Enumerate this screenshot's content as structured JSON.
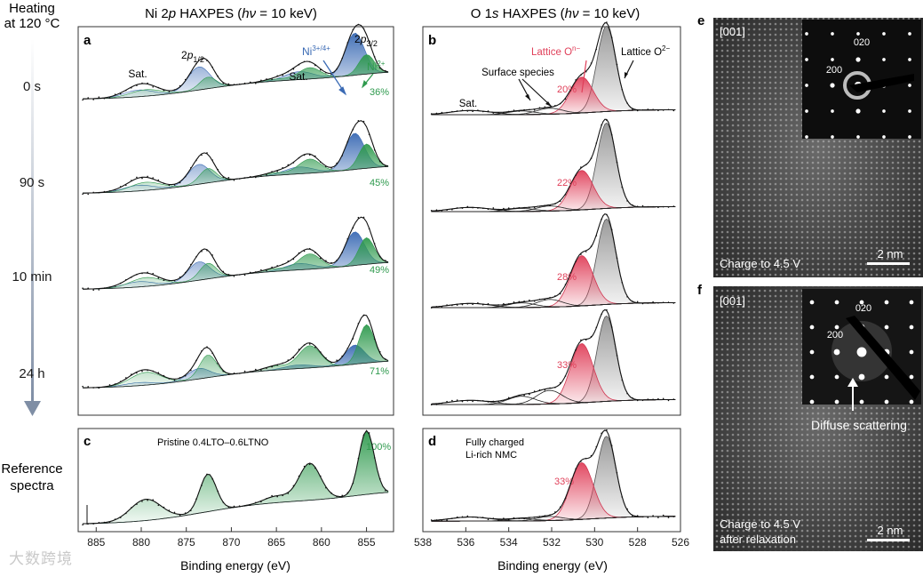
{
  "side": {
    "heating": "Heating",
    "at_temp": "at 120 °C",
    "times": [
      "0 s",
      "90 s",
      "10 min",
      "24 h"
    ],
    "reference_l1": "Reference",
    "reference_l2": "spectra"
  },
  "ni": {
    "title_pre": "Ni 2",
    "title_orb": "p",
    "title_mid": " HAXPES (",
    "title_h": "h",
    "title_nu": "ν",
    "title_post": " = 10 keV)",
    "panel_a": "a",
    "panel_c": "c",
    "lbl_2p12_pre": "2",
    "lbl_2p12_p": "p",
    "lbl_2p12_sub": "1/2",
    "lbl_2p32_pre": "2",
    "lbl_2p32_p": "p",
    "lbl_2p32_sub": "3/2",
    "sat_left": "Sat.",
    "sat_right": "Sat.",
    "ni34_base": "Ni",
    "ni34_sup": "3+/4+",
    "ni2_base": "Ni",
    "ni2_sup": "2+",
    "percents": [
      "36%",
      "45%",
      "49%",
      "71%"
    ],
    "ref_percent": "100%",
    "ref_label": "Pristine 0.4LTO–0.6LTNO",
    "ticks": [
      "885",
      "880",
      "875",
      "870",
      "865",
      "860",
      "855"
    ],
    "xlabel": "Binding energy (eV)"
  },
  "o": {
    "title_pre": "O 1",
    "title_orb": "s",
    "title_mid": " HAXPES (",
    "title_h": "h",
    "title_nu": "ν",
    "title_post": " = 10 keV)",
    "panel_b": "b",
    "panel_d": "d",
    "lattice_base": "Lattice O",
    "lattice_sup": "2−",
    "lattice_on_base": "Lattice O",
    "lattice_on_sup": "n−",
    "surface": "Surface species",
    "sat": "Sat.",
    "percents": [
      "20%",
      "22%",
      "28%",
      "33%"
    ],
    "ref_percent": "33%",
    "ref_label_1": "Fully charged",
    "ref_label_2": "Li-rich NMC",
    "ticks": [
      "538",
      "536",
      "534",
      "532",
      "530",
      "528",
      "526"
    ],
    "xlabel": "Binding energy (eV)"
  },
  "tem": {
    "panel_e": "e",
    "panel_f": "f",
    "zone_e": "[001]",
    "zone_f": "[001]",
    "e_spot_020": "020",
    "e_spot_200": "200",
    "f_spot_020": "020",
    "f_spot_200": "200",
    "diffuse": "Diffuse scattering",
    "caption_e": "Charge to 4.5 V",
    "caption_f_1": "Charge to 4.5 V",
    "caption_f_2": "after relaxation",
    "scale_e": "2 nm",
    "scale_f": "2 nm"
  },
  "watermark": "大数跨境",
  "colors": {
    "ni2_green": "#2f9a4e",
    "ni34_blue": "#3a6ab4",
    "lattice_on_red": "#e0405a",
    "arrow_gray": "#8d9aad"
  },
  "chart_data": [
    {
      "type": "line",
      "title": "Ni 2p HAXPES (hν = 10 keV)",
      "panels": [
        "a",
        "c"
      ],
      "xlabel": "Binding energy (eV)",
      "ylabel": "",
      "xlim": [
        887,
        852
      ],
      "xticks": [
        885,
        880,
        875,
        870,
        865,
        860,
        855
      ],
      "series": [
        {
          "name": "0 s",
          "ni2_fraction_pct": 36
        },
        {
          "name": "90 s",
          "ni2_fraction_pct": 45
        },
        {
          "name": "10 min",
          "ni2_fraction_pct": 49
        },
        {
          "name": "24 h",
          "ni2_fraction_pct": 71
        },
        {
          "name": "Pristine 0.4LTO–0.6LTNO (reference)",
          "ni2_fraction_pct": 100
        }
      ],
      "components": [
        "Ni2+",
        "Ni3+/4+",
        "Sat."
      ],
      "peaks_eV": {
        "2p3/2": 855.5,
        "2p1/2": 873,
        "sat_2p3/2": 861.5,
        "sat_2p1/2": 879.5
      }
    },
    {
      "type": "line",
      "title": "O 1s HAXPES (hν = 10 keV)",
      "panels": [
        "b",
        "d"
      ],
      "xlabel": "Binding energy (eV)",
      "ylabel": "",
      "xlim": [
        538,
        526
      ],
      "xticks": [
        538,
        536,
        534,
        532,
        530,
        528,
        526
      ],
      "series": [
        {
          "name": "0 s",
          "lattice_On_fraction_pct": 20
        },
        {
          "name": "90 s",
          "lattice_On_fraction_pct": 22
        },
        {
          "name": "10 min",
          "lattice_On_fraction_pct": 28
        },
        {
          "name": "24 h",
          "lattice_On_fraction_pct": 33
        },
        {
          "name": "Fully charged Li-rich NMC (reference)",
          "lattice_On_fraction_pct": 33
        }
      ],
      "components": [
        "Lattice O2−",
        "Lattice On−",
        "Surface species",
        "Sat."
      ],
      "peaks_eV": {
        "lattice_O2-": 529.4,
        "lattice_On-": 530.5,
        "surface": 532
      }
    }
  ]
}
